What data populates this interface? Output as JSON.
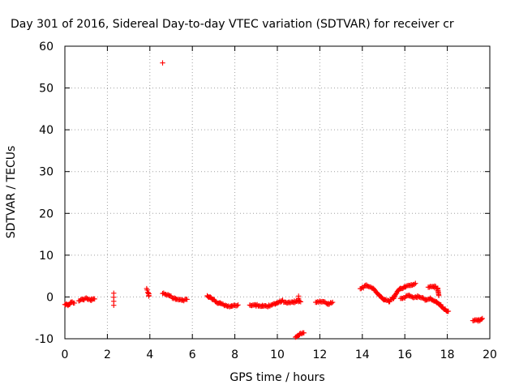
{
  "chart_data": {
    "type": "scatter",
    "title": "Day 301 of 2016, Sidereal Day-to-day VTEC variation (SDTVAR) for receiver cr",
    "xlabel": "GPS time / hours",
    "ylabel": "SDTVAR / TECUs",
    "xlim": [
      0,
      20
    ],
    "ylim": [
      -10,
      60
    ],
    "x_ticks": [
      0,
      2,
      4,
      6,
      8,
      10,
      12,
      14,
      16,
      18,
      20
    ],
    "y_ticks": [
      -10,
      0,
      10,
      20,
      30,
      40,
      50,
      60
    ],
    "x_tick_labels": [
      "0",
      "2",
      "4",
      "6",
      "8",
      "10",
      "12",
      "14",
      "16",
      "18",
      "20"
    ],
    "y_tick_labels": [
      "-10",
      "0",
      "10",
      "20",
      "30",
      "40",
      "50",
      "60"
    ],
    "grid": true,
    "marker": "+",
    "color": "#ff0000",
    "series": [
      {
        "name": "SDTVAR",
        "segments": [
          [
            [
              0.0,
              -1.6
            ],
            [
              0.15,
              -2.2
            ],
            [
              0.3,
              -1.4
            ],
            [
              0.45,
              -1.6
            ]
          ],
          [
            [
              0.65,
              -1.1
            ],
            [
              0.85,
              -0.6
            ],
            [
              1.05,
              -0.4
            ],
            [
              1.25,
              -0.6
            ],
            [
              1.4,
              -0.3
            ]
          ],
          [
            [
              2.3,
              -2.0
            ],
            [
              2.3,
              0.9
            ]
          ],
          [
            [
              3.85,
              1.8
            ],
            [
              3.95,
              0.8
            ],
            [
              3.95,
              0.0
            ]
          ],
          [
            [
              4.6,
              56.0
            ]
          ],
          [
            [
              4.6,
              0.8
            ],
            [
              4.9,
              0.2
            ],
            [
              5.2,
              -0.3
            ],
            [
              5.5,
              -0.6
            ],
            [
              5.75,
              -0.8
            ]
          ],
          [
            [
              6.7,
              0.4
            ],
            [
              6.95,
              -0.7
            ],
            [
              7.3,
              -1.5
            ],
            [
              7.6,
              -2.0
            ],
            [
              7.85,
              -2.2
            ],
            [
              8.15,
              -2.1
            ]
          ],
          [
            [
              8.7,
              -2.2
            ],
            [
              9.0,
              -2.1
            ],
            [
              9.3,
              -2.0
            ],
            [
              9.6,
              -2.1
            ],
            [
              9.9,
              -1.7
            ],
            [
              10.2,
              -1.0
            ],
            [
              10.5,
              -1.2
            ],
            [
              10.8,
              -1.1
            ],
            [
              11.1,
              -1.2
            ]
          ],
          [
            [
              11.0,
              0.2
            ],
            [
              11.0,
              -0.8
            ]
          ],
          [
            [
              10.85,
              -9.6
            ],
            [
              11.05,
              -8.9
            ],
            [
              11.25,
              -8.4
            ]
          ],
          [
            [
              11.8,
              -1.4
            ],
            [
              12.1,
              -1.2
            ],
            [
              12.4,
              -1.5
            ],
            [
              12.6,
              -1.2
            ]
          ],
          [
            [
              13.9,
              2.2
            ],
            [
              14.2,
              2.6
            ],
            [
              14.5,
              2.0
            ],
            [
              14.8,
              0.5
            ],
            [
              15.05,
              -0.8
            ],
            [
              15.25,
              -1.1
            ],
            [
              15.45,
              -0.3
            ],
            [
              15.7,
              1.5
            ],
            [
              16.0,
              2.6
            ],
            [
              16.3,
              3.0
            ],
            [
              16.5,
              3.1
            ]
          ],
          [
            [
              15.8,
              -0.3
            ],
            [
              16.2,
              0.2
            ],
            [
              16.6,
              0.0
            ],
            [
              17.0,
              -0.6
            ],
            [
              17.2,
              -0.2
            ],
            [
              17.5,
              -1.2
            ],
            [
              17.7,
              -2.0
            ],
            [
              17.9,
              -2.9
            ],
            [
              18.05,
              -3.4
            ]
          ],
          [
            [
              17.1,
              2.2
            ],
            [
              17.4,
              2.4
            ],
            [
              17.55,
              2.0
            ],
            [
              17.6,
              0.4
            ]
          ],
          [
            [
              19.2,
              -5.4
            ],
            [
              19.45,
              -5.8
            ],
            [
              19.65,
              -5.0
            ]
          ]
        ]
      }
    ]
  }
}
